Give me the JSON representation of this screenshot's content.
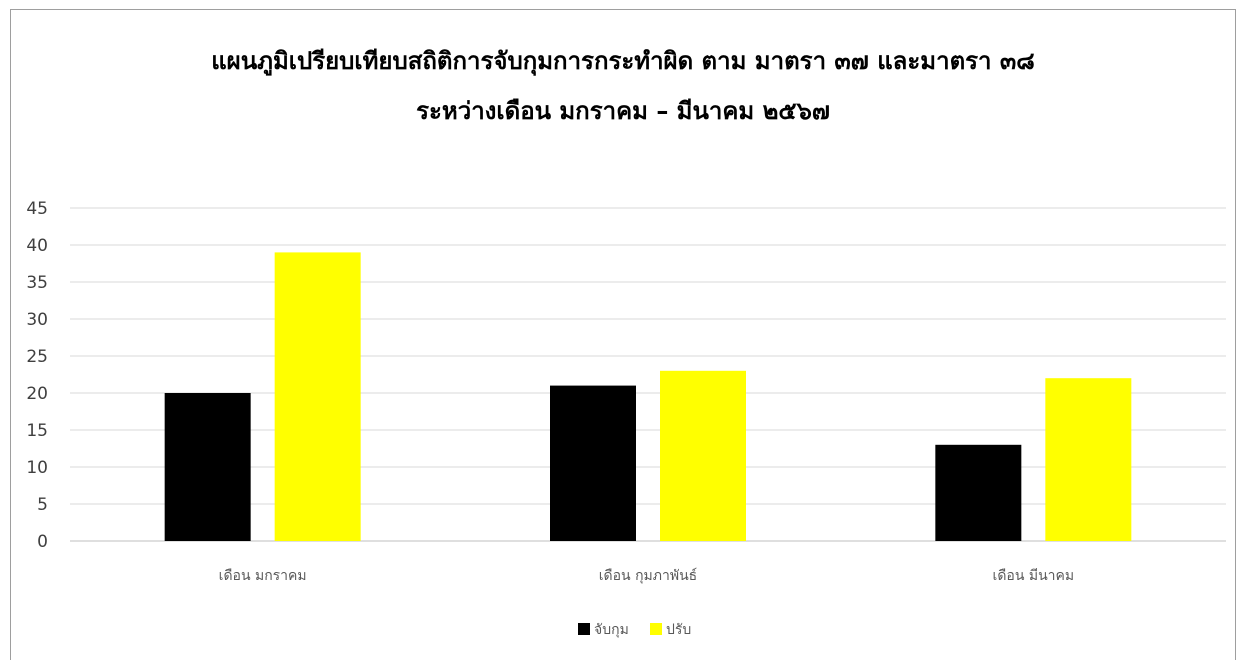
{
  "chart_data": {
    "type": "bar",
    "title": [
      "แผนภูมิเปรียบเทียบสถิติการจับกุมการกระทำผิด ตาม มาตรา ๓๗ และมาตรา ๓๘",
      "ระหว่างเดือน มกราคม – มีนาคม ๒๕๖๗"
    ],
    "categories": [
      "เดือน มกราคม",
      "เดือน กุมภาพันธ์",
      "เดือน มีนาคม"
    ],
    "series": [
      {
        "name": "จับกุม",
        "values": [
          20,
          21,
          13
        ],
        "color": "#000000"
      },
      {
        "name": "ปรับ",
        "values": [
          39,
          23,
          22
        ],
        "color": "#ffff00"
      }
    ],
    "ylim": [
      0,
      45
    ],
    "yticks": [
      "0",
      "5",
      "10",
      "15",
      "20",
      "25",
      "30",
      "35",
      "40",
      "45"
    ],
    "grid": true,
    "legend": "bottom"
  }
}
